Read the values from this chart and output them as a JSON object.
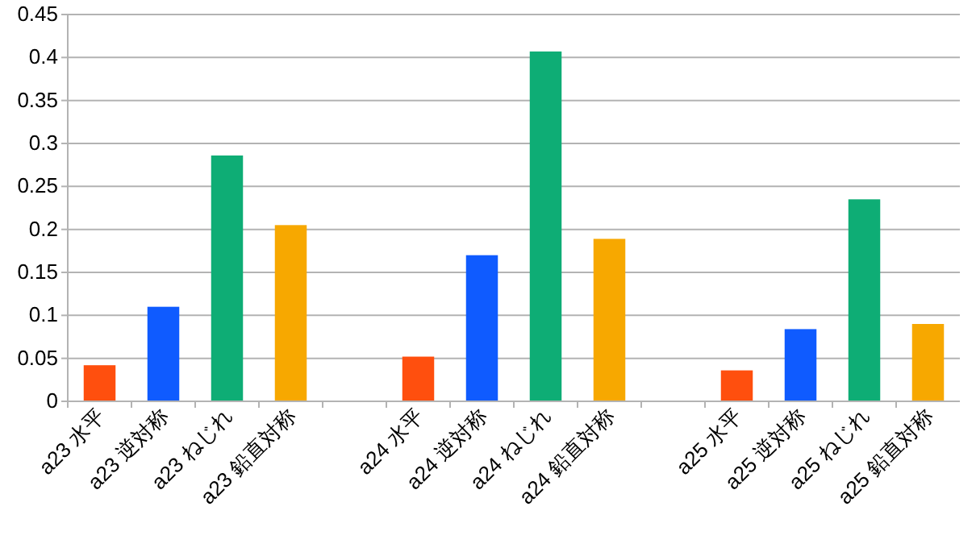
{
  "chart_data": {
    "type": "bar",
    "categories": [
      "a23 水平",
      "a23 逆対称",
      "a23 ねじれ",
      "a23 鉛直対称",
      null,
      "a24 水平",
      "a24 逆対称",
      "a24 ねじれ",
      "a24 鉛直対称",
      null,
      "a25 水平",
      "a25 逆対称",
      "a25 ねじれ",
      "a25 鉛直対称"
    ],
    "values": [
      0.042,
      0.11,
      0.286,
      0.205,
      null,
      0.052,
      0.17,
      0.407,
      0.189,
      null,
      0.036,
      0.084,
      0.235,
      0.09
    ],
    "colors": [
      "#ff4f0e",
      "#0f5bff",
      "#0ead75",
      "#f7a800",
      null,
      "#ff4f0e",
      "#0f5bff",
      "#0ead75",
      "#f7a800",
      null,
      "#ff4f0e",
      "#0f5bff",
      "#0ead75",
      "#f7a800"
    ],
    "ylim": [
      0,
      0.45
    ],
    "yticks": [
      0,
      0.05,
      0.1,
      0.15,
      0.2,
      0.25,
      0.3,
      0.35,
      0.4,
      0.45
    ],
    "grid": "y"
  }
}
